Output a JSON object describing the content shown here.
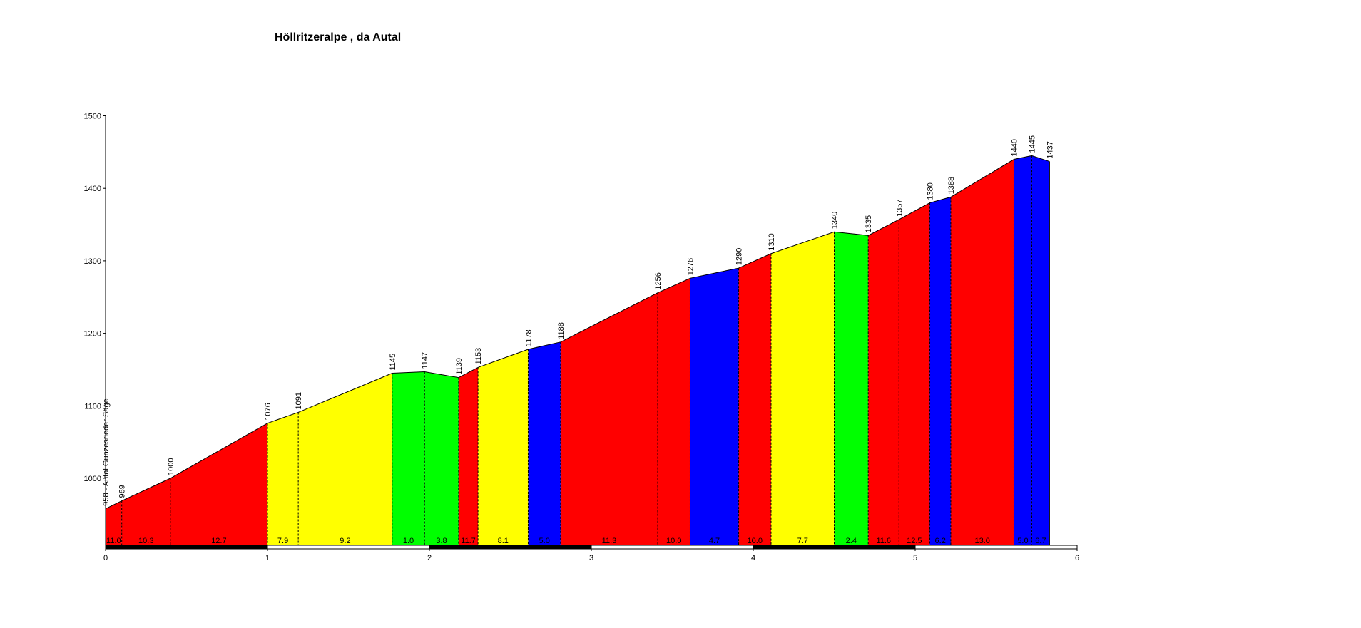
{
  "chart_data": {
    "type": "area",
    "title": "Höllritzeralpe , da Autal",
    "xlabel": "",
    "ylabel": "",
    "xlim": [
      0,
      6
    ],
    "ylim": [
      900,
      1500
    ],
    "y_ticks": [
      "1000",
      "1100",
      "1200",
      "1300",
      "1400",
      "1500"
    ],
    "x_ticks": [
      "0",
      "1",
      "2",
      "3",
      "4",
      "5",
      "6"
    ],
    "grid": false,
    "start_label": "958 - Autal Gunzesrieder Säge",
    "points": [
      {
        "x": 0.0,
        "elev": 958
      },
      {
        "x": 0.1,
        "elev": 969,
        "label": "969"
      },
      {
        "x": 0.4,
        "elev": 1000,
        "label": "1000"
      },
      {
        "x": 1.0,
        "elev": 1076,
        "label": "1076"
      },
      {
        "x": 1.19,
        "elev": 1091,
        "label": "1091"
      },
      {
        "x": 1.77,
        "elev": 1145,
        "label": "1145"
      },
      {
        "x": 1.97,
        "elev": 1147,
        "label": "1147"
      },
      {
        "x": 2.18,
        "elev": 1139,
        "label": "1139"
      },
      {
        "x": 2.3,
        "elev": 1153,
        "label": "1153"
      },
      {
        "x": 2.61,
        "elev": 1178,
        "label": "1178"
      },
      {
        "x": 2.81,
        "elev": 1188,
        "label": "1188"
      },
      {
        "x": 3.41,
        "elev": 1256,
        "label": "1256"
      },
      {
        "x": 3.61,
        "elev": 1276,
        "label": "1276"
      },
      {
        "x": 3.91,
        "elev": 1290,
        "label": "1290"
      },
      {
        "x": 4.11,
        "elev": 1310,
        "label": "1310"
      },
      {
        "x": 4.5,
        "elev": 1340,
        "label": "1340"
      },
      {
        "x": 4.71,
        "elev": 1335,
        "label": "1335"
      },
      {
        "x": 4.9,
        "elev": 1357,
        "label": "1357"
      },
      {
        "x": 5.09,
        "elev": 1380,
        "label": "1380"
      },
      {
        "x": 5.22,
        "elev": 1388,
        "label": "1388"
      },
      {
        "x": 5.61,
        "elev": 1440,
        "label": "1440"
      },
      {
        "x": 5.72,
        "elev": 1445,
        "label": "1445"
      },
      {
        "x": 5.83,
        "elev": 1437,
        "label": "1437"
      }
    ],
    "segments": [
      {
        "gradient": "11.0",
        "color": "#ff0000"
      },
      {
        "gradient": "10.3",
        "color": "#ff0000"
      },
      {
        "gradient": "12.7",
        "color": "#ff0000"
      },
      {
        "gradient": "7.9",
        "color": "#ffff00"
      },
      {
        "gradient": "9.2",
        "color": "#ffff00"
      },
      {
        "gradient": "1.0",
        "color": "#00ff00"
      },
      {
        "gradient": "3.8",
        "color": "#00ff00"
      },
      {
        "gradient": "11.7",
        "color": "#ff0000"
      },
      {
        "gradient": "8.1",
        "color": "#ffff00"
      },
      {
        "gradient": "5.0",
        "color": "#0000ff"
      },
      {
        "gradient": "11.3",
        "color": "#ff0000"
      },
      {
        "gradient": "10.0",
        "color": "#ff0000"
      },
      {
        "gradient": "4.7",
        "color": "#0000ff"
      },
      {
        "gradient": "10.0",
        "color": "#ff0000"
      },
      {
        "gradient": "7.7",
        "color": "#ffff00"
      },
      {
        "gradient": "2.4",
        "color": "#00ff00"
      },
      {
        "gradient": "11.6",
        "color": "#ff0000"
      },
      {
        "gradient": "12.5",
        "color": "#ff0000"
      },
      {
        "gradient": "6.2",
        "color": "#0000ff"
      },
      {
        "gradient": "13.0",
        "color": "#ff0000"
      },
      {
        "gradient": "5.0",
        "color": "#0000ff"
      },
      {
        "gradient": "6.7",
        "color": "#0000ff"
      }
    ],
    "legend": "none"
  }
}
